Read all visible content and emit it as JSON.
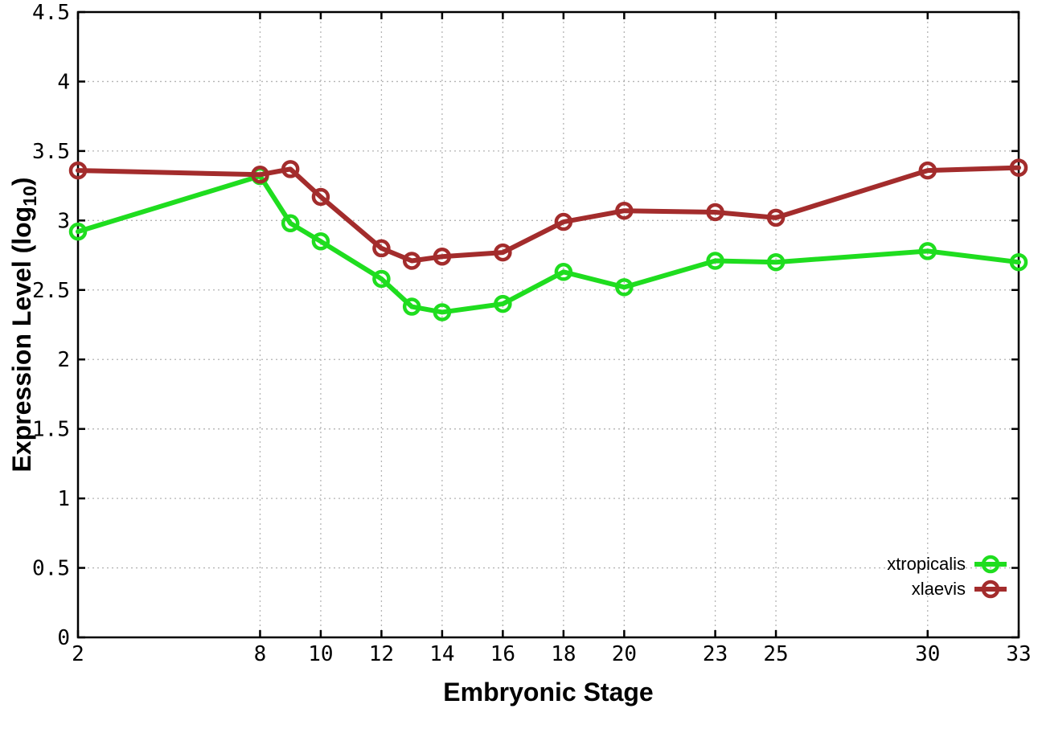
{
  "chart_data": {
    "type": "line",
    "x": [
      2,
      8,
      9,
      10,
      12,
      13,
      14,
      16,
      18,
      20,
      23,
      25,
      30,
      33
    ],
    "series": [
      {
        "name": "xtropicalis",
        "color": "#1fdd1f",
        "values": [
          2.92,
          3.32,
          2.98,
          2.85,
          2.58,
          2.38,
          2.34,
          2.4,
          2.63,
          2.52,
          2.71,
          2.7,
          2.78,
          2.7
        ]
      },
      {
        "name": "xlaevis",
        "color": "#a32c2c",
        "values": [
          3.36,
          3.33,
          3.37,
          3.17,
          2.8,
          2.71,
          2.74,
          2.77,
          2.99,
          3.07,
          3.06,
          3.02,
          3.36,
          3.38
        ]
      }
    ],
    "title": "",
    "xlabel": "Embryonic Stage",
    "ylabel": "Expression Level (log10)",
    "xlim": [
      2,
      33
    ],
    "ylim": [
      0,
      4.5
    ],
    "xticks": {
      "values": [
        2,
        8,
        10,
        12,
        14,
        16,
        18,
        20,
        23,
        25,
        30,
        33
      ],
      "labels": [
        "2",
        "8",
        "10",
        "12",
        "14",
        "16",
        "18",
        "20",
        "23",
        "25",
        "30",
        "33"
      ]
    },
    "yticks": {
      "values": [
        0,
        0.5,
        1,
        1.5,
        2,
        2.5,
        3,
        3.5,
        4,
        4.5
      ],
      "labels": [
        "0",
        "0.5",
        "1",
        "1.5",
        "2",
        "2.5",
        "3",
        "3.5",
        "4",
        "4.5"
      ]
    },
    "grid": true,
    "legend_position": "bottom-right"
  },
  "labels": {
    "xlabel": "Embryonic Stage",
    "ylabel_pre": "Expression Level (log",
    "ylabel_sub": "10",
    "ylabel_post": ")"
  },
  "style": {
    "grid_color": "#b4b4b4",
    "border_color": "#000000",
    "background": "#ffffff"
  }
}
